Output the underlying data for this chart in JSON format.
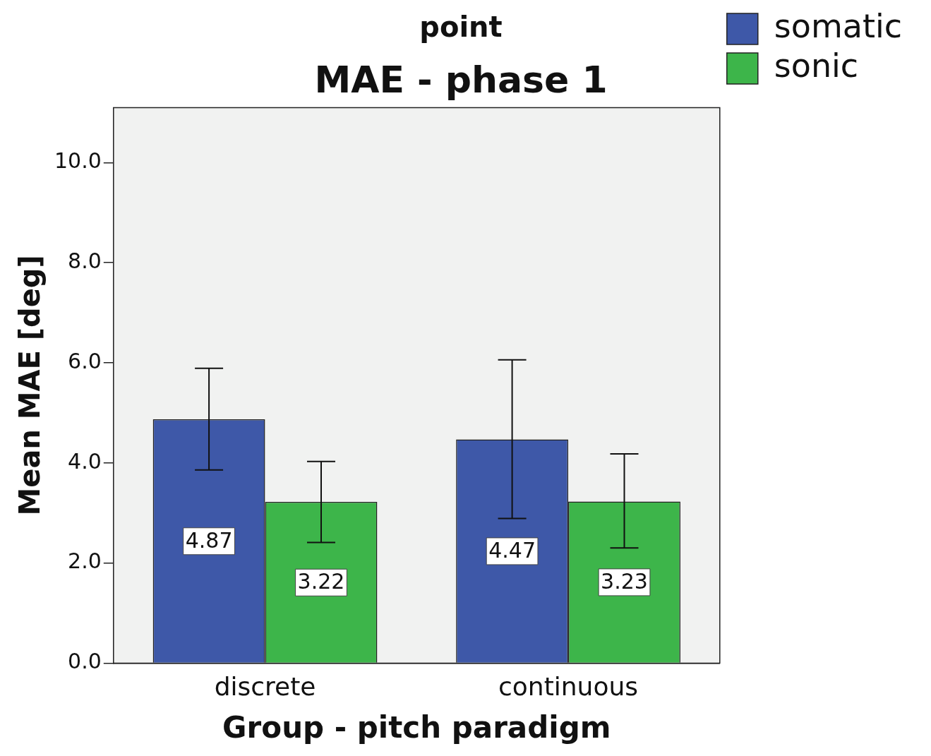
{
  "chart_data": {
    "type": "bar",
    "title": "point",
    "subtitle": "MAE - phase 1",
    "xlabel": "Group - pitch paradigm",
    "ylabel": "Mean MAE [deg]",
    "categories": [
      "discrete",
      "continuous"
    ],
    "series": [
      {
        "name": "somatic",
        "color": "#3e58a8",
        "values": [
          4.87,
          4.47
        ],
        "errors": [
          [
            3.86,
            5.89
          ],
          [
            2.89,
            6.06
          ]
        ]
      },
      {
        "name": "sonic",
        "color": "#3db54a",
        "values": [
          3.22,
          3.23
        ],
        "errors": [
          [
            2.41,
            4.03
          ],
          [
            2.3,
            4.18
          ]
        ]
      }
    ],
    "ylim": [
      0,
      11.1
    ],
    "yticks": [
      {
        "value": 0,
        "label": "0.0"
      },
      {
        "value": 2,
        "label": "2.0"
      },
      {
        "value": 4,
        "label": "4.0"
      },
      {
        "value": 6,
        "label": "6.0"
      },
      {
        "value": 8,
        "label": "8.0"
      },
      {
        "value": 10,
        "label": "10.0"
      }
    ],
    "data_labels": true,
    "grid": false,
    "legend": "top right"
  }
}
